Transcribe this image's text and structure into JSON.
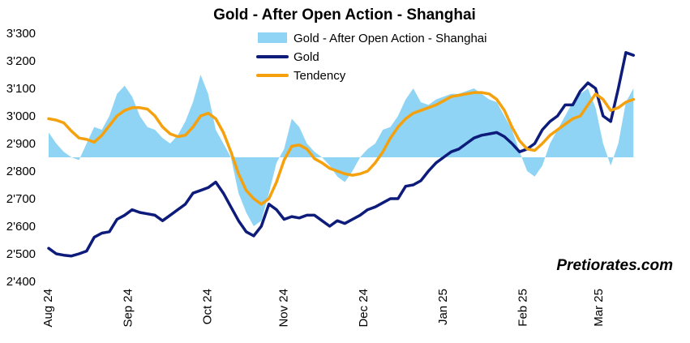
{
  "chart_data": {
    "type": "line",
    "title": "Gold - After Open Action - Shanghai",
    "watermark": "Pretiorates.com",
    "ylim": [
      2400,
      3300
    ],
    "yticks": [
      {
        "value": 2400,
        "label": "2'400"
      },
      {
        "value": 2500,
        "label": "2'500"
      },
      {
        "value": 2600,
        "label": "2'600"
      },
      {
        "value": 2700,
        "label": "2'700"
      },
      {
        "value": 2800,
        "label": "2'800"
      },
      {
        "value": 2900,
        "label": "2'900"
      },
      {
        "value": 3000,
        "label": "3'000"
      },
      {
        "value": 3100,
        "label": "3'100"
      },
      {
        "value": 3200,
        "label": "3'200"
      },
      {
        "value": 3300,
        "label": "3'300"
      }
    ],
    "xlim": [
      0,
      155
    ],
    "xticks": [
      {
        "value": 0,
        "label": "Aug 24"
      },
      {
        "value": 21,
        "label": "Sep 24"
      },
      {
        "value": 42,
        "label": "Oct 24"
      },
      {
        "value": 62,
        "label": "Nov 24"
      },
      {
        "value": 83,
        "label": "Dec 24"
      },
      {
        "value": 104,
        "label": "Jan 25"
      },
      {
        "value": 125,
        "label": "Feb 25"
      },
      {
        "value": 145,
        "label": "Mar 25"
      }
    ],
    "area_baseline": 2850,
    "legend": {
      "placement": "top-center",
      "entries": [
        {
          "name": "Gold - After Open Action - Shanghai",
          "kind": "area"
        },
        {
          "name": "Gold",
          "kind": "line"
        },
        {
          "name": "Tendency",
          "kind": "line"
        }
      ]
    },
    "series": [
      {
        "name": "Gold - After Open Action - Shanghai",
        "kind": "area",
        "color": "#8fd4f4",
        "x": [
          0,
          2,
          4,
          6,
          8,
          10,
          12,
          14,
          16,
          18,
          20,
          22,
          24,
          26,
          28,
          30,
          32,
          34,
          36,
          38,
          40,
          42,
          44,
          46,
          48,
          50,
          52,
          54,
          56,
          58,
          60,
          62,
          64,
          66,
          68,
          70,
          72,
          74,
          76,
          78,
          80,
          82,
          84,
          86,
          88,
          90,
          92,
          94,
          96,
          98,
          100,
          102,
          104,
          106,
          108,
          110,
          112,
          114,
          116,
          118,
          120,
          122,
          124,
          126,
          128,
          130,
          132,
          134,
          136,
          138,
          140,
          142,
          144,
          146,
          148,
          150,
          152,
          154
        ],
        "values": [
          2940,
          2900,
          2870,
          2850,
          2840,
          2900,
          2960,
          2950,
          3000,
          3080,
          3110,
          3070,
          3000,
          2960,
          2950,
          2920,
          2900,
          2930,
          2980,
          3050,
          3150,
          3080,
          2950,
          2900,
          2850,
          2720,
          2650,
          2600,
          2620,
          2720,
          2830,
          2880,
          2990,
          2960,
          2900,
          2870,
          2850,
          2820,
          2780,
          2760,
          2800,
          2850,
          2880,
          2900,
          2950,
          2960,
          3000,
          3060,
          3100,
          3050,
          3040,
          3060,
          3070,
          3080,
          3080,
          3090,
          3100,
          3080,
          3060,
          3050,
          3000,
          2950,
          2870,
          2800,
          2780,
          2820,
          2900,
          2950,
          3000,
          3050,
          3080,
          3100,
          3030,
          2900,
          2820,
          2900,
          3050,
          3100
        ]
      },
      {
        "name": "Gold",
        "kind": "line",
        "color": "#0d1b7a",
        "x": [
          0,
          2,
          4,
          6,
          8,
          10,
          12,
          14,
          16,
          18,
          20,
          22,
          24,
          26,
          28,
          30,
          32,
          34,
          36,
          38,
          40,
          42,
          44,
          46,
          48,
          50,
          52,
          54,
          56,
          58,
          60,
          62,
          64,
          66,
          68,
          70,
          72,
          74,
          76,
          78,
          80,
          82,
          84,
          86,
          88,
          90,
          92,
          94,
          96,
          98,
          100,
          102,
          104,
          106,
          108,
          110,
          112,
          114,
          116,
          118,
          120,
          122,
          124,
          126,
          128,
          130,
          132,
          134,
          136,
          138,
          140,
          142,
          144,
          146,
          148,
          150,
          152,
          154
        ],
        "values": [
          2520,
          2500,
          2495,
          2492,
          2500,
          2510,
          2560,
          2575,
          2580,
          2625,
          2640,
          2660,
          2650,
          2645,
          2640,
          2620,
          2640,
          2660,
          2680,
          2720,
          2730,
          2740,
          2760,
          2720,
          2670,
          2620,
          2580,
          2565,
          2600,
          2680,
          2660,
          2625,
          2635,
          2630,
          2640,
          2640,
          2620,
          2600,
          2620,
          2610,
          2625,
          2640,
          2660,
          2670,
          2685,
          2700,
          2700,
          2745,
          2750,
          2765,
          2800,
          2830,
          2850,
          2870,
          2880,
          2900,
          2920,
          2930,
          2935,
          2940,
          2925,
          2900,
          2870,
          2880,
          2900,
          2950,
          2980,
          3000,
          3040,
          3040,
          3090,
          3120,
          3100,
          3000,
          2980,
          3100,
          3230,
          3220
        ]
      },
      {
        "name": "Tendency",
        "kind": "line",
        "color": "#f5a10e",
        "x": [
          0,
          2,
          4,
          6,
          8,
          10,
          12,
          14,
          16,
          18,
          20,
          22,
          24,
          26,
          28,
          30,
          32,
          34,
          36,
          38,
          40,
          42,
          44,
          46,
          48,
          50,
          52,
          54,
          56,
          58,
          60,
          62,
          64,
          66,
          68,
          70,
          72,
          74,
          76,
          78,
          80,
          82,
          84,
          86,
          88,
          90,
          92,
          94,
          96,
          98,
          100,
          102,
          104,
          106,
          108,
          110,
          112,
          114,
          116,
          118,
          120,
          122,
          124,
          126,
          128,
          130,
          132,
          134,
          136,
          138,
          140,
          142,
          144,
          146,
          148,
          150,
          152,
          154
        ],
        "values": [
          2990,
          2985,
          2975,
          2945,
          2920,
          2915,
          2905,
          2930,
          2965,
          3000,
          3020,
          3030,
          3030,
          3025,
          3000,
          2960,
          2935,
          2925,
          2930,
          2960,
          3000,
          3010,
          2990,
          2940,
          2870,
          2790,
          2730,
          2700,
          2680,
          2700,
          2760,
          2840,
          2890,
          2895,
          2880,
          2845,
          2830,
          2810,
          2800,
          2790,
          2785,
          2790,
          2800,
          2830,
          2870,
          2920,
          2960,
          2990,
          3010,
          3020,
          3030,
          3040,
          3055,
          3070,
          3075,
          3080,
          3085,
          3085,
          3080,
          3060,
          3020,
          2960,
          2910,
          2880,
          2875,
          2900,
          2930,
          2950,
          2970,
          2990,
          3000,
          3040,
          3080,
          3060,
          3020,
          3030,
          3050,
          3060
        ]
      }
    ]
  }
}
